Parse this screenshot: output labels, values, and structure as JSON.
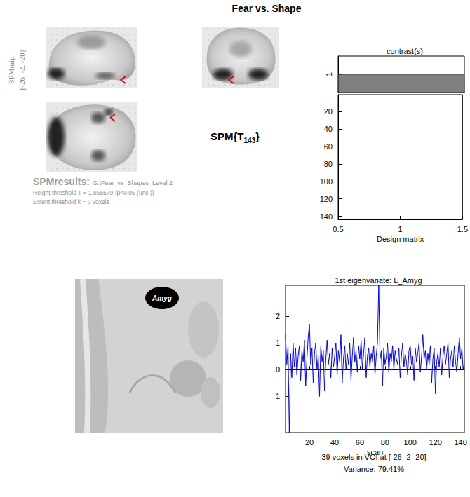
{
  "header": {
    "title": "Fear vs. Shape",
    "mip_label": "SPMmip",
    "coordinates": "[-26, -2, -20]",
    "statistic": "SPM{T",
    "statistic_df": "143",
    "statistic_end": "}",
    "results_label": "SPMresults:",
    "results_path": "G:\\Fear_vs_Shapes_Level 2",
    "height_threshold": "Height threshold T = 1.655579  {p<0.05 (unc.)}",
    "extent_threshold": "Extent threshold k = 0 voxels"
  },
  "voi": {
    "label": "Amyg",
    "summary": "39 voxels in VOI at [-26 -2 -20]",
    "variance": "Variance: 79.41%"
  },
  "chart_data": [
    {
      "type": "bar",
      "title": "contrast(s)",
      "categories": [
        null
      ],
      "values": [
        1
      ],
      "color": "#808080",
      "ylim": [
        0,
        2
      ],
      "yticks": [
        1
      ],
      "tick_labels": "y",
      "grid": false
    },
    {
      "type": "matrix",
      "xlabel": "Design matrix",
      "xlim": [
        0.5,
        1.5
      ],
      "xticks": [
        0.5,
        1,
        1.5
      ],
      "ylim": [
        0.5,
        143.5
      ],
      "yticks": [
        20,
        40,
        60,
        80,
        100,
        120,
        140
      ],
      "grid": false
    },
    {
      "type": "line",
      "title": "1st eigenvariate: L_Amyg",
      "xlabel": "scan",
      "color": "#0000ff",
      "x": [
        1,
        2,
        3,
        4,
        5,
        6,
        7,
        8,
        9,
        10,
        11,
        12,
        13,
        14,
        15,
        16,
        17,
        18,
        19,
        20,
        21,
        22,
        23,
        24,
        25,
        26,
        27,
        28,
        29,
        30,
        31,
        32,
        33,
        34,
        35,
        36,
        37,
        38,
        39,
        40,
        41,
        42,
        43,
        44,
        45,
        46,
        47,
        48,
        49,
        50,
        51,
        52,
        53,
        54,
        55,
        56,
        57,
        58,
        59,
        60,
        61,
        62,
        63,
        64,
        65,
        66,
        67,
        68,
        69,
        70,
        71,
        72,
        73,
        74,
        75,
        76,
        77,
        78,
        79,
        80,
        81,
        82,
        83,
        84,
        85,
        86,
        87,
        88,
        89,
        90,
        91,
        92,
        93,
        94,
        95,
        96,
        97,
        98,
        99,
        100,
        101,
        102,
        103,
        104,
        105,
        106,
        107,
        108,
        109,
        110,
        111,
        112,
        113,
        114,
        115,
        116,
        117,
        118,
        119,
        120,
        121,
        122,
        123,
        124,
        125,
        126,
        127,
        128,
        129,
        130,
        131,
        132,
        133,
        134,
        135,
        136,
        137,
        138,
        139,
        140,
        141,
        142,
        143
      ],
      "values": [
        1.3,
        0.2,
        0.9,
        -2.35,
        0.6,
        -0.3,
        1.0,
        0.1,
        0.8,
        -0.2,
        0.5,
        0.9,
        -0.4,
        0.7,
        0.3,
        1.1,
        -0.6,
        0.4,
        1.2,
        1.7,
        0.2,
        0.8,
        -0.5,
        0.6,
        1.0,
        0.0,
        0.5,
        -1.0,
        0.9,
        0.3,
        0.7,
        -0.8,
        0.4,
        1.1,
        0.2,
        0.6,
        -0.3,
        0.8,
        0.1,
        0.5,
        1.0,
        -0.2,
        0.7,
        0.3,
        1.3,
        -0.5,
        0.4,
        0.9,
        0.0,
        0.6,
        0.2,
        1.0,
        -0.4,
        0.5,
        1.2,
        0.3,
        0.7,
        -0.1,
        0.9,
        0.4,
        1.1,
        0.0,
        0.6,
        1.2,
        -0.3,
        0.5,
        0.8,
        0.1,
        0.6,
        0.3,
        0.9,
        -0.2,
        0.5,
        1.0,
        3.15,
        0.4,
        0.7,
        -0.6,
        0.8,
        0.2,
        0.5,
        1.0,
        -0.1,
        0.6,
        0.3,
        0.9,
        0.0,
        0.7,
        0.4,
        0.2,
        0.8,
        -0.3,
        0.5,
        1.0,
        0.1,
        0.6,
        0.3,
        -0.2,
        0.7,
        0.9,
        0.2,
        0.5,
        -0.4,
        0.8,
        0.3,
        0.6,
        1.0,
        -0.1,
        0.5,
        1.3,
        0.4,
        0.7,
        0.0,
        0.6,
        0.2,
        0.9,
        -0.5,
        0.4,
        0.8,
        -0.9,
        0.3,
        0.6,
        0.1,
        0.8,
        -0.2,
        0.5,
        0.9,
        0.2,
        0.6,
        1.0,
        -0.3,
        0.4,
        0.7,
        0.1,
        0.9,
        0.3,
        -0.1,
        0.6,
        1.2,
        0.4,
        0.8,
        0.0,
        0.3
      ],
      "xlim": [
        1,
        143
      ],
      "xticks": [
        20,
        40,
        60,
        80,
        100,
        120,
        140
      ],
      "ylim": [
        -2.35,
        3.15
      ],
      "yticks": [
        -1,
        0,
        1,
        2
      ],
      "grid": false
    }
  ]
}
